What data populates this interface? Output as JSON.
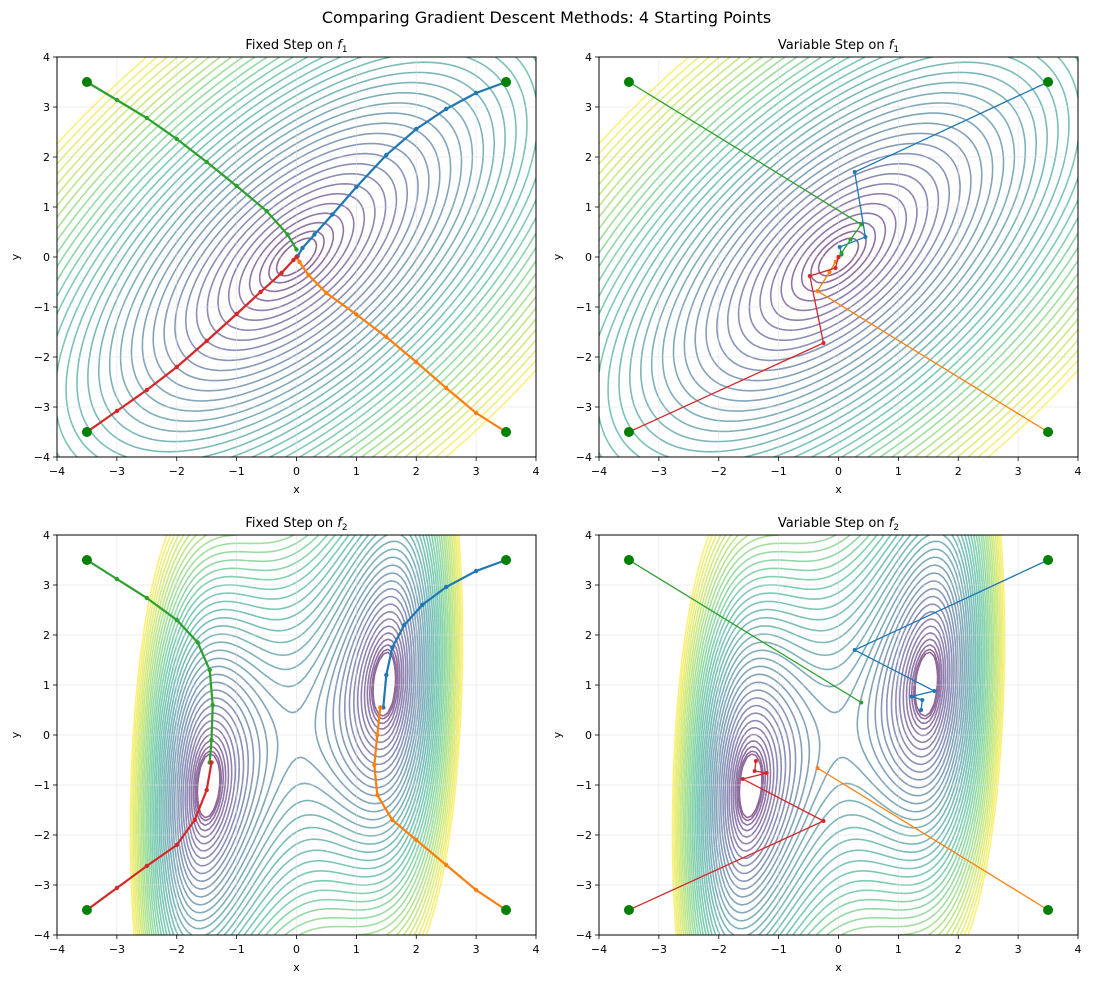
{
  "suptitle": "Comparing Gradient Descent Methods: 4 Starting Points",
  "colors": {
    "series": [
      "#1f77b4",
      "#ff7f0e",
      "#2ca02c",
      "#d62728"
    ],
    "start_marker": "#008000",
    "grid": "#dddddd"
  },
  "chart_data": [
    {
      "type": "line",
      "title_prefix": "Fixed Step on ",
      "title_var": "f",
      "title_sub": "1",
      "xlabel": "x",
      "ylabel": "y",
      "xlim": [
        -4,
        4
      ],
      "ylim": [
        -4,
        4
      ],
      "xticks": [
        -4,
        -3,
        -2,
        -1,
        0,
        1,
        2,
        3,
        4
      ],
      "yticks": [
        -4,
        -3,
        -2,
        -1,
        0,
        1,
        2,
        3,
        4
      ],
      "grid": true,
      "background": "contour of f1",
      "series": [
        {
          "start": [
            3.5,
            3.5
          ],
          "path": [
            [
              3.5,
              3.5
            ],
            [
              3.0,
              3.28
            ],
            [
              2.5,
              2.96
            ],
            [
              2.0,
              2.56
            ],
            [
              1.5,
              2.04
            ],
            [
              1.0,
              1.4
            ],
            [
              0.6,
              0.85
            ],
            [
              0.3,
              0.45
            ],
            [
              0.1,
              0.18
            ],
            [
              0.02,
              0.02
            ]
          ]
        },
        {
          "start": [
            3.5,
            -3.5
          ],
          "path": [
            [
              3.5,
              -3.5
            ],
            [
              3.0,
              -3.12
            ],
            [
              2.5,
              -2.62
            ],
            [
              2.0,
              -2.1
            ],
            [
              1.5,
              -1.6
            ],
            [
              1.0,
              -1.15
            ],
            [
              0.5,
              -0.72
            ],
            [
              0.2,
              -0.36
            ],
            [
              0.05,
              -0.1
            ],
            [
              0.0,
              0.0
            ]
          ]
        },
        {
          "start": [
            -3.5,
            3.5
          ],
          "path": [
            [
              -3.5,
              3.5
            ],
            [
              -3.0,
              3.14
            ],
            [
              -2.5,
              2.78
            ],
            [
              -2.0,
              2.36
            ],
            [
              -1.5,
              1.9
            ],
            [
              -1.0,
              1.42
            ],
            [
              -0.5,
              0.92
            ],
            [
              -0.15,
              0.45
            ],
            [
              0.0,
              0.15
            ]
          ]
        },
        {
          "start": [
            -3.5,
            -3.5
          ],
          "path": [
            [
              -3.5,
              -3.5
            ],
            [
              -3.0,
              -3.08
            ],
            [
              -2.5,
              -2.66
            ],
            [
              -2.0,
              -2.2
            ],
            [
              -1.5,
              -1.68
            ],
            [
              -1.0,
              -1.14
            ],
            [
              -0.6,
              -0.7
            ],
            [
              -0.25,
              -0.32
            ],
            [
              -0.05,
              -0.06
            ],
            [
              0.0,
              0.0
            ]
          ]
        }
      ]
    },
    {
      "type": "line",
      "title_prefix": "Variable Step on ",
      "title_var": "f",
      "title_sub": "1",
      "xlabel": "x",
      "ylabel": "y",
      "xlim": [
        -4,
        4
      ],
      "ylim": [
        -4,
        4
      ],
      "xticks": [
        -4,
        -3,
        -2,
        -1,
        0,
        1,
        2,
        3,
        4
      ],
      "yticks": [
        -4,
        -3,
        -2,
        -1,
        0,
        1,
        2,
        3,
        4
      ],
      "grid": true,
      "background": "contour of f1",
      "series": [
        {
          "start": [
            3.5,
            3.5
          ],
          "path": [
            [
              3.5,
              3.5
            ],
            [
              0.27,
              1.7
            ],
            [
              0.45,
              0.4
            ],
            [
              0.02,
              0.2
            ],
            [
              0.05,
              0.05
            ],
            [
              0.0,
              0.0
            ]
          ]
        },
        {
          "start": [
            3.5,
            -3.5
          ],
          "path": [
            [
              3.5,
              -3.5
            ],
            [
              -0.35,
              -0.68
            ],
            [
              -0.15,
              -0.3
            ],
            [
              -0.05,
              -0.1
            ],
            [
              0.0,
              0.0
            ]
          ]
        },
        {
          "start": [
            -3.5,
            3.5
          ],
          "path": [
            [
              -3.5,
              3.5
            ],
            [
              0.38,
              0.65
            ],
            [
              0.2,
              0.35
            ],
            [
              0.05,
              0.08
            ],
            [
              0.0,
              0.0
            ]
          ]
        },
        {
          "start": [
            -3.5,
            -3.5
          ],
          "path": [
            [
              -3.5,
              -3.5
            ],
            [
              -0.25,
              -1.72
            ],
            [
              -0.48,
              -0.38
            ],
            [
              -0.05,
              -0.22
            ],
            [
              0.0,
              0.0
            ]
          ]
        }
      ]
    },
    {
      "type": "line",
      "title_prefix": "Fixed Step on ",
      "title_var": "f",
      "title_sub": "2",
      "xlabel": "x",
      "ylabel": "y",
      "xlim": [
        -4,
        4
      ],
      "ylim": [
        -4,
        4
      ],
      "xticks": [
        -4,
        -3,
        -2,
        -1,
        0,
        1,
        2,
        3,
        4
      ],
      "yticks": [
        -4,
        -3,
        -2,
        -1,
        0,
        1,
        2,
        3,
        4
      ],
      "grid": true,
      "background": "contour of f2",
      "series": [
        {
          "start": [
            3.5,
            3.5
          ],
          "path": [
            [
              3.5,
              3.5
            ],
            [
              3.0,
              3.28
            ],
            [
              2.5,
              2.96
            ],
            [
              2.1,
              2.6
            ],
            [
              1.8,
              2.2
            ],
            [
              1.6,
              1.75
            ],
            [
              1.5,
              1.2
            ],
            [
              1.45,
              0.55
            ]
          ]
        },
        {
          "start": [
            3.5,
            -3.5
          ],
          "path": [
            [
              3.5,
              -3.5
            ],
            [
              3.0,
              -3.1
            ],
            [
              2.5,
              -2.6
            ],
            [
              2.0,
              -2.1
            ],
            [
              1.6,
              -1.7
            ],
            [
              1.35,
              -1.2
            ],
            [
              1.3,
              -0.6
            ],
            [
              1.35,
              0.0
            ],
            [
              1.4,
              0.55
            ]
          ]
        },
        {
          "start": [
            -3.5,
            3.5
          ],
          "path": [
            [
              -3.5,
              3.5
            ],
            [
              -3.0,
              3.12
            ],
            [
              -2.5,
              2.74
            ],
            [
              -2.0,
              2.3
            ],
            [
              -1.65,
              1.85
            ],
            [
              -1.45,
              1.3
            ],
            [
              -1.4,
              0.6
            ],
            [
              -1.42,
              -0.1
            ],
            [
              -1.45,
              -0.55
            ]
          ]
        },
        {
          "start": [
            -3.5,
            -3.5
          ],
          "path": [
            [
              -3.5,
              -3.5
            ],
            [
              -3.0,
              -3.06
            ],
            [
              -2.5,
              -2.62
            ],
            [
              -2.0,
              -2.2
            ],
            [
              -1.7,
              -1.7
            ],
            [
              -1.5,
              -1.1
            ],
            [
              -1.42,
              -0.55
            ]
          ]
        }
      ]
    },
    {
      "type": "line",
      "title_prefix": "Variable Step on ",
      "title_var": "f",
      "title_sub": "2",
      "xlabel": "x",
      "ylabel": "y",
      "xlim": [
        -4,
        4
      ],
      "ylim": [
        -4,
        4
      ],
      "xticks": [
        -4,
        -3,
        -2,
        -1,
        0,
        1,
        2,
        3,
        4
      ],
      "yticks": [
        -4,
        -3,
        -2,
        -1,
        0,
        1,
        2,
        3,
        4
      ],
      "grid": true,
      "background": "contour of f2",
      "series": [
        {
          "start": [
            3.5,
            3.5
          ],
          "path": [
            [
              3.5,
              3.5
            ],
            [
              0.27,
              1.7
            ],
            [
              1.6,
              0.88
            ],
            [
              1.22,
              0.77
            ],
            [
              1.4,
              0.7
            ],
            [
              1.38,
              0.5
            ]
          ]
        },
        {
          "start": [
            3.5,
            -3.5
          ],
          "path": [
            [
              3.5,
              -3.5
            ],
            [
              -0.35,
              -0.66
            ]
          ]
        },
        {
          "start": [
            -3.5,
            3.5
          ],
          "path": [
            [
              -3.5,
              3.5
            ],
            [
              0.38,
              0.65
            ]
          ]
        },
        {
          "start": [
            -3.5,
            -3.5
          ],
          "path": [
            [
              -3.5,
              -3.5
            ],
            [
              -0.25,
              -1.72
            ],
            [
              -1.6,
              -0.88
            ],
            [
              -1.2,
              -0.76
            ],
            [
              -1.4,
              -0.72
            ],
            [
              -1.38,
              -0.52
            ]
          ]
        }
      ]
    }
  ]
}
